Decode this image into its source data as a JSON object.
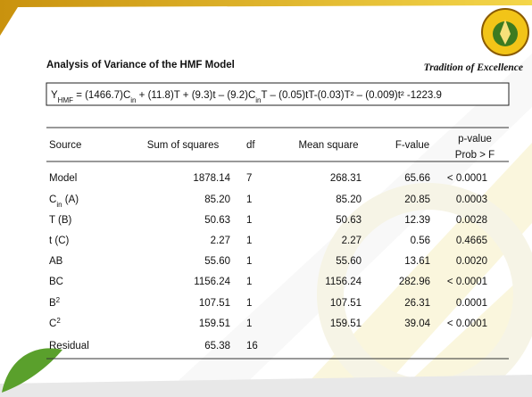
{
  "title": "Analysis of Variance of the HMF Model",
  "tagline": "Tradition of Excellence",
  "equation": [
    {
      "text": "Y"
    },
    {
      "text": "HMF",
      "sub": true
    },
    {
      "text": " = (1466.7)C"
    },
    {
      "text": "in",
      "sub": true
    },
    {
      "text": " + (11.8)T + (9.3)t – (9.2)C"
    },
    {
      "text": "in",
      "sub": true
    },
    {
      "text": "T – (0.05)tT-(0.03)T² – (0.009)t²  -1223.9"
    }
  ],
  "table": {
    "header": [
      "Source",
      "Sum of squares",
      "df",
      "Mean square",
      "F-value"
    ],
    "p_header": [
      "p-value",
      "Prob > F"
    ],
    "rows": [
      {
        "label": [
          {
            "text": "Model"
          }
        ],
        "cells": [
          "1878.14",
          "7",
          "268.31",
          "65.66",
          "< 0.0001"
        ]
      },
      {
        "label": [
          {
            "text": "C"
          },
          {
            "text": "in",
            "sub": true
          },
          {
            "text": " (A)"
          }
        ],
        "cells": [
          "85.20",
          "1",
          "85.20",
          "20.85",
          "0.0003"
        ]
      },
      {
        "label": [
          {
            "text": "T (B)"
          }
        ],
        "cells": [
          "50.63",
          "1",
          "50.63",
          "12.39",
          "0.0028"
        ]
      },
      {
        "label": [
          {
            "text": "t (C)"
          }
        ],
        "cells": [
          "2.27",
          "1",
          "2.27",
          "0.56",
          "0.4665"
        ]
      },
      {
        "label": [
          {
            "text": "AB"
          }
        ],
        "cells": [
          "55.60",
          "1",
          "55.60",
          "13.61",
          "0.0020"
        ]
      },
      {
        "label": [
          {
            "text": "BC"
          }
        ],
        "cells": [
          "1156.24",
          "1",
          "1156.24",
          "282.96",
          "< 0.0001"
        ]
      },
      {
        "label": [
          {
            "text": "B"
          },
          {
            "text": "2",
            "sup": true
          }
        ],
        "cells": [
          "107.51",
          "1",
          "107.51",
          "26.31",
          "0.0001"
        ]
      },
      {
        "label": [
          {
            "text": "C"
          },
          {
            "text": "2",
            "sup": true
          }
        ],
        "cells": [
          "159.51",
          "1",
          "159.51",
          "39.04",
          "< 0.0001"
        ]
      },
      {
        "label": [
          {
            "text": "Residual"
          }
        ],
        "cells": [
          "65.38",
          "16"
        ]
      }
    ]
  }
}
